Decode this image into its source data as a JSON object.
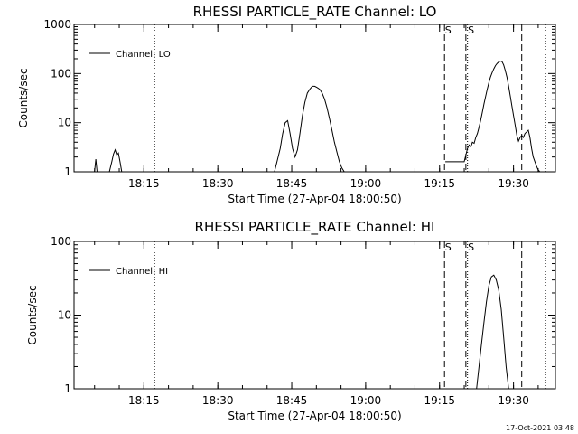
{
  "footer_timestamp": "17-Oct-2021 03:48",
  "chart_data": [
    {
      "type": "line",
      "title": "RHESSI PARTICLE_RATE Channel: LO",
      "xlabel": "Start Time (27-Apr-04 18:00:50)",
      "ylabel": "Counts/sec",
      "yscale": "log",
      "ylim": [
        1,
        1000
      ],
      "yticks": [
        1,
        10,
        100,
        1000
      ],
      "yticklabels": [
        "1",
        "10",
        "100",
        "1000"
      ],
      "xlim": [
        "18:00:50",
        "19:38:30"
      ],
      "xticks": [
        "18:15",
        "18:30",
        "18:45",
        "19:00",
        "19:15",
        "19:30"
      ],
      "legend": {
        "placement": "top-left",
        "label": "Channel: LO"
      },
      "vlines": [
        {
          "x": "18:17:10",
          "style": "dotted"
        },
        {
          "x": "19:16:00",
          "style": "dashed",
          "label": "S"
        },
        {
          "x": "19:20:20",
          "style": "dashed"
        },
        {
          "x": "19:20:40",
          "style": "dotted",
          "label": "S"
        },
        {
          "x": "19:31:40",
          "style": "dashed"
        },
        {
          "x": "19:36:30",
          "style": "dotted"
        }
      ],
      "series": [
        {
          "name": "Channel: LO",
          "segments": [
            {
              "x": [
                "18:05:00",
                "18:05:15",
                "18:05:30"
              ],
              "y": [
                1,
                1.8,
                1
              ]
            },
            {
              "x": [
                "18:08:00",
                "18:08:30",
                "18:08:50",
                "18:09:10",
                "18:09:30",
                "18:09:50",
                "18:10:10",
                "18:10:30"
              ],
              "y": [
                1,
                1.6,
                2.3,
                2.8,
                2.2,
                2.4,
                1.6,
                1
              ]
            },
            {
              "x": [
                "18:41:30",
                "18:42:00",
                "18:42:40",
                "18:43:10",
                "18:43:40",
                "18:44:10",
                "18:44:40",
                "18:45:10",
                "18:45:40",
                "18:46:10",
                "18:46:40",
                "18:47:10",
                "18:47:40",
                "18:48:10",
                "18:48:40",
                "18:49:10",
                "18:49:40",
                "18:50:10",
                "18:50:40",
                "18:51:10",
                "18:51:40",
                "18:52:10",
                "18:52:40",
                "18:53:10",
                "18:53:40",
                "18:54:10",
                "18:54:40",
                "18:55:10",
                "18:55:40"
              ],
              "y": [
                1,
                1.6,
                3,
                6,
                10,
                11,
                6,
                3,
                2,
                2.8,
                6,
                14,
                26,
                40,
                48,
                55,
                55,
                52,
                48,
                40,
                30,
                20,
                12,
                7,
                4,
                2.5,
                1.6,
                1.2,
                1
              ]
            },
            {
              "x": [
                "19:16:10",
                "19:17:00",
                "19:18:00",
                "19:19:00",
                "19:20:00",
                "19:20:40",
                "19:21:00",
                "19:21:20",
                "19:21:40",
                "19:22:00",
                "19:22:20",
                "19:22:40",
                "19:23:00",
                "19:23:20",
                "19:23:40",
                "19:24:00",
                "19:24:20",
                "19:24:40",
                "19:25:00",
                "19:25:20",
                "19:25:40",
                "19:26:00",
                "19:26:20",
                "19:26:40",
                "19:27:00",
                "19:27:20",
                "19:27:40",
                "19:28:00",
                "19:28:20",
                "19:28:40",
                "19:29:00",
                "19:29:20",
                "19:29:40",
                "19:30:00",
                "19:30:20",
                "19:30:40",
                "19:31:00",
                "19:31:20",
                "19:31:40",
                "19:32:00",
                "19:32:20",
                "19:32:40",
                "19:33:00",
                "19:33:20",
                "19:33:40",
                "19:34:00",
                "19:34:20",
                "19:34:40",
                "19:35:00",
                "19:35:20"
              ],
              "y": [
                1.6,
                1.6,
                1.6,
                1.6,
                1.6,
                3,
                3.5,
                3.2,
                4,
                3.8,
                5,
                6,
                8,
                11,
                16,
                24,
                34,
                48,
                65,
                85,
                105,
                125,
                145,
                160,
                172,
                180,
                175,
                150,
                115,
                85,
                55,
                35,
                22,
                14,
                9,
                5.5,
                4.2,
                5,
                5.5,
                5,
                6,
                6.5,
                7,
                5,
                3,
                2,
                1.6,
                1.3,
                1.1,
                1
              ]
            }
          ]
        }
      ]
    },
    {
      "type": "line",
      "title": "RHESSI PARTICLE_RATE Channel: HI",
      "xlabel": "Start Time (27-Apr-04 18:00:50)",
      "ylabel": "Counts/sec",
      "yscale": "log",
      "ylim": [
        1,
        100
      ],
      "yticks": [
        1,
        10,
        100
      ],
      "yticklabels": [
        "1",
        "10",
        "100"
      ],
      "xlim": [
        "18:00:50",
        "19:38:30"
      ],
      "xticks": [
        "18:15",
        "18:30",
        "18:45",
        "19:00",
        "19:15",
        "19:30"
      ],
      "legend": {
        "placement": "top-left",
        "label": "Channel: HI"
      },
      "vlines": [
        {
          "x": "18:17:10",
          "style": "dotted"
        },
        {
          "x": "19:16:00",
          "style": "dashed",
          "label": "S"
        },
        {
          "x": "19:20:20",
          "style": "dashed"
        },
        {
          "x": "19:20:40",
          "style": "dotted",
          "label": "S"
        },
        {
          "x": "19:31:40",
          "style": "dashed"
        },
        {
          "x": "19:36:30",
          "style": "dotted"
        }
      ],
      "series": [
        {
          "name": "Channel: HI",
          "segments": [
            {
              "x": [
                "19:22:30",
                "19:23:00",
                "19:23:30",
                "19:24:00",
                "19:24:30",
                "19:25:00",
                "19:25:30",
                "19:26:00",
                "19:26:30",
                "19:27:00",
                "19:27:30",
                "19:28:00",
                "19:28:30",
                "19:29:00"
              ],
              "y": [
                1,
                2,
                4,
                8,
                15,
                25,
                33,
                35,
                30,
                22,
                12,
                5,
                2,
                1
              ]
            }
          ]
        }
      ]
    }
  ]
}
